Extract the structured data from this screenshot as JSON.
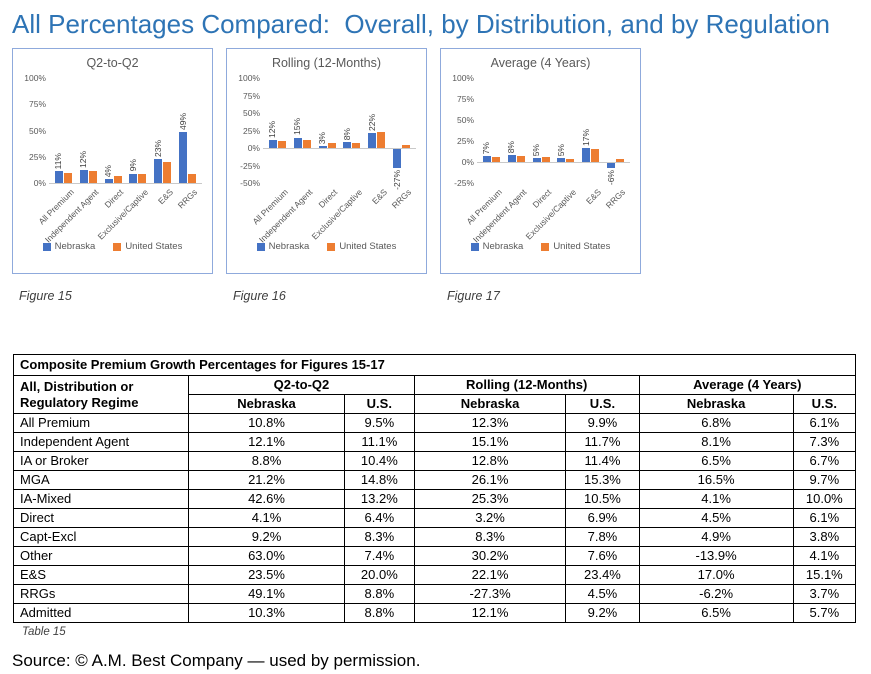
{
  "page_title": "All Percentages Compared:  Overall, by Distribution, and by Regulation",
  "source_line": "Source: © A.M. Best Company — used by permission.",
  "colors": {
    "heading": "#2E74B5",
    "nebraska_blue": "#4472C4",
    "united_states_orange": "#ED7D31",
    "chart_border": "#8FAADC",
    "axis_text": "#595959"
  },
  "legend_labels": [
    "Nebraska",
    "United States"
  ],
  "chart_data": [
    {
      "type": "bar",
      "title": "Q2-to-Q2",
      "figure_caption": "Figure 15",
      "categories": [
        "All Premium",
        "Independent Agent",
        "Direct",
        "Exclusive/Captive",
        "E&S",
        "RRGs"
      ],
      "series": [
        {
          "name": "Nebraska",
          "color": "#4472C4",
          "values": [
            11,
            12,
            4,
            9,
            23,
            49
          ],
          "labels": [
            "11%",
            "12%",
            "4%",
            "9%",
            "23%",
            "49%"
          ]
        },
        {
          "name": "United States",
          "color": "#ED7D31",
          "values": [
            9.5,
            11.1,
            6.4,
            8.3,
            20.0,
            8.8
          ],
          "labels": []
        }
      ],
      "ylim": [
        0,
        100
      ],
      "ytick_step": 25,
      "yticks": [
        "100%",
        "75%",
        "50%",
        "25%",
        "0%"
      ],
      "grid": false,
      "legend_position": "bottom"
    },
    {
      "type": "bar",
      "title": "Rolling (12-Months)",
      "figure_caption": "Figure 16",
      "categories": [
        "All Premium",
        "Independent Agent",
        "Direct",
        "Exclusive/Captive",
        "E&S",
        "RRGs"
      ],
      "series": [
        {
          "name": "Nebraska",
          "color": "#4472C4",
          "values": [
            12,
            15,
            3,
            8,
            22,
            -27
          ],
          "labels": [
            "12%",
            "15%",
            "3%",
            "8%",
            "22%",
            "-27%"
          ]
        },
        {
          "name": "United States",
          "color": "#ED7D31",
          "values": [
            9.9,
            11.7,
            6.9,
            7.8,
            23.4,
            4.5
          ],
          "labels": []
        }
      ],
      "ylim": [
        -50,
        100
      ],
      "ytick_step": 25,
      "yticks": [
        "100%",
        "75%",
        "50%",
        "25%",
        "0%",
        "-25%",
        "-50%"
      ],
      "grid": false,
      "legend_position": "bottom"
    },
    {
      "type": "bar",
      "title": "Average (4 Years)",
      "figure_caption": "Figure 17",
      "categories": [
        "All Premium",
        "Independent Agent",
        "Direct",
        "Exclusive/Captive",
        "E&S",
        "RRGs"
      ],
      "series": [
        {
          "name": "Nebraska",
          "color": "#4472C4",
          "values": [
            7,
            8,
            5,
            5,
            17,
            -6
          ],
          "labels": [
            "7%",
            "8%",
            "5%",
            "5%",
            "17%",
            "-6%"
          ]
        },
        {
          "name": "United States",
          "color": "#ED7D31",
          "values": [
            6.1,
            7.3,
            6.1,
            3.8,
            15.1,
            3.7
          ],
          "labels": []
        }
      ],
      "ylim": [
        -25,
        100
      ],
      "ytick_step": 25,
      "yticks": [
        "100%",
        "75%",
        "50%",
        "25%",
        "0%",
        "-25%"
      ],
      "grid": false,
      "legend_position": "bottom"
    }
  ],
  "table": {
    "title": "Composite Premium Growth Percentages for Figures 15-17",
    "row_header_line1": "All, Distribution or",
    "row_header_line2": "Regulatory Regime",
    "group_headers": [
      "Q2-to-Q2",
      "Rolling (12-Months)",
      "Average (4 Years)"
    ],
    "sub_headers": [
      "Nebraska",
      "U.S."
    ],
    "rows": [
      {
        "label": "All Premium",
        "values": [
          "10.8%",
          "9.5%",
          "12.3%",
          "9.9%",
          "6.8%",
          "6.1%"
        ]
      },
      {
        "label": "Independent Agent",
        "values": [
          "12.1%",
          "11.1%",
          "15.1%",
          "11.7%",
          "8.1%",
          "7.3%"
        ]
      },
      {
        "label": "IA or Broker",
        "values": [
          "8.8%",
          "10.4%",
          "12.8%",
          "11.4%",
          "6.5%",
          "6.7%"
        ]
      },
      {
        "label": "MGA",
        "values": [
          "21.2%",
          "14.8%",
          "26.1%",
          "15.3%",
          "16.5%",
          "9.7%"
        ]
      },
      {
        "label": "IA-Mixed",
        "values": [
          "42.6%",
          "13.2%",
          "25.3%",
          "10.5%",
          "4.1%",
          "10.0%"
        ]
      },
      {
        "label": "Direct",
        "values": [
          "4.1%",
          "6.4%",
          "3.2%",
          "6.9%",
          "4.5%",
          "6.1%"
        ]
      },
      {
        "label": "Capt-Excl",
        "values": [
          "9.2%",
          "8.3%",
          "8.3%",
          "7.8%",
          "4.9%",
          "3.8%"
        ]
      },
      {
        "label": "Other",
        "values": [
          "63.0%",
          "7.4%",
          "30.2%",
          "7.6%",
          "-13.9%",
          "4.1%"
        ]
      },
      {
        "label": "E&S",
        "values": [
          "23.5%",
          "20.0%",
          "22.1%",
          "23.4%",
          "17.0%",
          "15.1%"
        ]
      },
      {
        "label": "RRGs",
        "values": [
          "49.1%",
          "8.8%",
          "-27.3%",
          "4.5%",
          "-6.2%",
          "3.7%"
        ]
      },
      {
        "label": "Admitted",
        "values": [
          "10.3%",
          "8.8%",
          "12.1%",
          "9.2%",
          "6.5%",
          "5.7%"
        ]
      }
    ],
    "caption": "Table 15"
  }
}
